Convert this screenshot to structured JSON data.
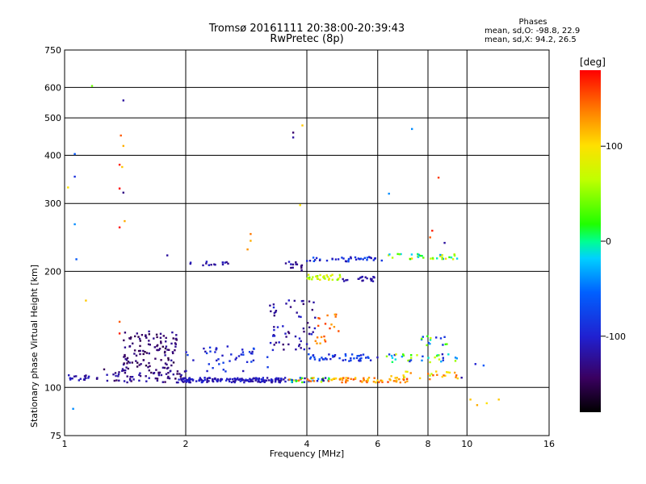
{
  "header": {
    "title_line1": "Tromsø 20161111 20:38:00-20:39:43",
    "title_line2": "RwPretec (8p)"
  },
  "phases": {
    "heading": "Phases",
    "line_o": "mean, sd,O: -98.8, 22.9",
    "line_x": "mean, sd,X:  94.2, 26.5"
  },
  "colorbar": {
    "unit": "[deg]",
    "range": [
      -180,
      180
    ],
    "ticks": [
      "100",
      "0",
      "-100"
    ]
  },
  "chart_data": {
    "type": "scatter",
    "xlabel": "Frequency [MHz]",
    "ylabel": "Stationary phase Virtual Height [km]",
    "xscale": "log",
    "yscale": "log",
    "xlim": [
      1,
      16
    ],
    "ylim": [
      75,
      750
    ],
    "xticks": [
      "1",
      "2",
      "4",
      "6",
      "8",
      "10",
      "16"
    ],
    "xtick_values": [
      1,
      2,
      4,
      6,
      8,
      10,
      16
    ],
    "yticks": [
      "75",
      "100",
      "200",
      "300",
      "400",
      "500",
      "600",
      "750"
    ],
    "ytick_values": [
      75,
      100,
      200,
      300,
      400,
      500,
      600,
      750
    ],
    "grid": true,
    "color_mapping": "phase (deg)",
    "clusters": [
      {
        "f": [
          1.0,
          1.15
        ],
        "h": [
          104,
          108
        ],
        "ph": [
          -130,
          -100
        ],
        "n": 18
      },
      {
        "f": [
          1.2,
          2.0
        ],
        "h": [
          103,
          112
        ],
        "ph": [
          -150,
          -110
        ],
        "n": 70
      },
      {
        "f": [
          1.4,
          1.9
        ],
        "h": [
          112,
          140
        ],
        "ph": [
          -155,
          -120
        ],
        "n": 110
      },
      {
        "f": [
          1.9,
          3.6
        ],
        "h": [
          103,
          106
        ],
        "ph": [
          -125,
          -95
        ],
        "n": 150
      },
      {
        "f": [
          3.6,
          4.6
        ],
        "h": [
          103,
          106
        ],
        "ph": [
          -130,
          160
        ],
        "n": 45
      },
      {
        "f": [
          4.6,
          7.2
        ],
        "h": [
          103,
          106
        ],
        "ph": [
          100,
          160
        ],
        "n": 60
      },
      {
        "f": [
          2.0,
          3.2
        ],
        "h": [
          110,
          128
        ],
        "ph": [
          -120,
          -70
        ],
        "n": 45
      },
      {
        "f": [
          3.2,
          4.2
        ],
        "h": [
          125,
          170
        ],
        "ph": [
          -140,
          -95
        ],
        "n": 60
      },
      {
        "f": [
          3.5,
          3.9
        ],
        "h": [
          200,
          212
        ],
        "ph": [
          -140,
          -100
        ],
        "n": 14
      },
      {
        "f": [
          4.0,
          4.9
        ],
        "h": [
          190,
          196
        ],
        "ph": [
          40,
          100
        ],
        "n": 30
      },
      {
        "f": [
          4.9,
          6.0
        ],
        "h": [
          188,
          194
        ],
        "ph": [
          -130,
          -110
        ],
        "n": 20
      },
      {
        "f": [
          4.0,
          6.2
        ],
        "h": [
          212,
          218
        ],
        "ph": [
          -120,
          -60
        ],
        "n": 40
      },
      {
        "f": [
          4.0,
          6.0
        ],
        "h": [
          117,
          122
        ],
        "ph": [
          -110,
          -60
        ],
        "n": 45
      },
      {
        "f": [
          4.2,
          4.9
        ],
        "h": [
          130,
          155
        ],
        "ph": [
          120,
          160
        ],
        "n": 20
      },
      {
        "f": [
          6.3,
          9.5
        ],
        "h": [
          215,
          222
        ],
        "ph": [
          -40,
          110
        ],
        "n": 35
      },
      {
        "f": [
          6.3,
          9.5
        ],
        "h": [
          116,
          122
        ],
        "ph": [
          -110,
          80
        ],
        "n": 35
      },
      {
        "f": [
          6.3,
          9.5
        ],
        "h": [
          105,
          110
        ],
        "ph": [
          60,
          150
        ],
        "n": 25
      },
      {
        "f": [
          7.6,
          9.0
        ],
        "h": [
          128,
          136
        ],
        "ph": [
          -110,
          120
        ],
        "n": 15
      },
      {
        "f": [
          2.0,
          2.6
        ],
        "h": [
          205,
          212
        ],
        "ph": [
          -130,
          -100
        ],
        "n": 14
      }
    ],
    "points": [
      {
        "f": 1.17,
        "h": 605,
        "ph": 40
      },
      {
        "f": 1.4,
        "h": 555,
        "ph": -120
      },
      {
        "f": 1.38,
        "h": 450,
        "ph": 150
      },
      {
        "f": 1.4,
        "h": 423,
        "ph": 120
      },
      {
        "f": 1.37,
        "h": 378,
        "ph": 170
      },
      {
        "f": 1.39,
        "h": 373,
        "ph": 110
      },
      {
        "f": 1.37,
        "h": 328,
        "ph": 180
      },
      {
        "f": 1.4,
        "h": 320,
        "ph": -130
      },
      {
        "f": 1.41,
        "h": 270,
        "ph": 120
      },
      {
        "f": 1.37,
        "h": 260,
        "ph": 180
      },
      {
        "f": 1.06,
        "h": 403,
        "ph": -60
      },
      {
        "f": 1.06,
        "h": 352,
        "ph": -90
      },
      {
        "f": 1.02,
        "h": 330,
        "ph": 100
      },
      {
        "f": 1.06,
        "h": 265,
        "ph": -40
      },
      {
        "f": 1.07,
        "h": 215,
        "ph": -60
      },
      {
        "f": 1.13,
        "h": 168,
        "ph": 110
      },
      {
        "f": 1.37,
        "h": 148,
        "ph": 150
      },
      {
        "f": 1.37,
        "h": 138,
        "ph": 170
      },
      {
        "f": 1.05,
        "h": 88,
        "ph": -40
      },
      {
        "f": 1.8,
        "h": 220,
        "ph": -120
      },
      {
        "f": 2.9,
        "h": 250,
        "ph": 140
      },
      {
        "f": 2.9,
        "h": 240,
        "ph": 120
      },
      {
        "f": 2.85,
        "h": 228,
        "ph": 130
      },
      {
        "f": 3.7,
        "h": 458,
        "ph": -140
      },
      {
        "f": 3.7,
        "h": 445,
        "ph": -120
      },
      {
        "f": 3.9,
        "h": 478,
        "ph": 110
      },
      {
        "f": 3.85,
        "h": 297,
        "ph": 100
      },
      {
        "f": 7.3,
        "h": 468,
        "ph": -40
      },
      {
        "f": 8.5,
        "h": 350,
        "ph": 160
      },
      {
        "f": 6.4,
        "h": 318,
        "ph": -40
      },
      {
        "f": 8.1,
        "h": 245,
        "ph": 150
      },
      {
        "f": 8.2,
        "h": 255,
        "ph": 170
      },
      {
        "f": 8.8,
        "h": 237,
        "ph": -120
      },
      {
        "f": 10.2,
        "h": 93,
        "ph": 110
      },
      {
        "f": 10.6,
        "h": 90,
        "ph": 120
      },
      {
        "f": 11.2,
        "h": 91,
        "ph": 100
      },
      {
        "f": 12.0,
        "h": 93,
        "ph": 110
      },
      {
        "f": 10.5,
        "h": 115,
        "ph": -100
      },
      {
        "f": 11.0,
        "h": 114,
        "ph": -60
      },
      {
        "f": 9.7,
        "h": 106,
        "ph": -120
      }
    ]
  }
}
